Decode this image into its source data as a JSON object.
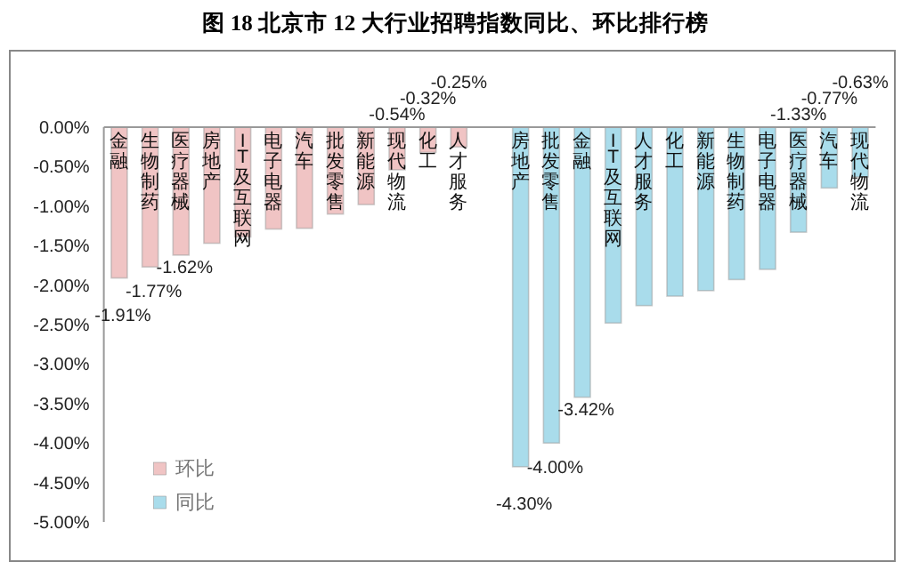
{
  "chart_data": {
    "type": "bar",
    "title": "图 18  北京市 12 大行业招聘指数同比、环比排行榜",
    "categories": [
      "金融",
      "生物制药",
      "医疗器械",
      "房地产",
      "IT及互联网",
      "电子电器",
      "汽车",
      "批发零售",
      "新能源",
      "现代物流",
      "化工",
      "人才服务",
      null,
      "房地产",
      "批发零售",
      "金融",
      "IT及互联网",
      "人才服务",
      "化工",
      "新能源",
      "生物制药",
      "电子电器",
      "医疗器械",
      "汽车",
      "现代物流"
    ],
    "series": [
      {
        "name": "环比",
        "color": "#f0c4c4",
        "values": [
          -1.91,
          -1.77,
          -1.62,
          -1.47,
          -1.39,
          -1.29,
          -1.28,
          -1.1,
          -0.98,
          -0.54,
          -0.32,
          -0.25,
          null,
          null,
          null,
          null,
          null,
          null,
          null,
          null,
          null,
          null,
          null,
          null,
          null
        ],
        "value_labels": [
          "-1.91%",
          "-1.77%",
          "-1.62%",
          null,
          null,
          null,
          null,
          null,
          null,
          "-0.54%",
          "-0.32%",
          "-0.25%",
          null,
          null,
          null,
          null,
          null,
          null,
          null,
          null,
          null,
          null,
          null,
          null,
          null
        ]
      },
      {
        "name": "同比",
        "color": "#a9dceb",
        "values": [
          null,
          null,
          null,
          null,
          null,
          null,
          null,
          null,
          null,
          null,
          null,
          null,
          null,
          -4.3,
          -4.0,
          -3.42,
          -2.48,
          -2.26,
          -2.14,
          -2.07,
          -1.93,
          -1.8,
          -1.33,
          -0.77,
          -0.63
        ],
        "value_labels": [
          null,
          null,
          null,
          null,
          null,
          null,
          null,
          null,
          null,
          null,
          null,
          null,
          null,
          "-4.30%",
          "-4.00%",
          "-3.42%",
          null,
          null,
          null,
          null,
          null,
          null,
          "-1.33%",
          "-0.77%",
          "-0.63%"
        ]
      }
    ],
    "ylim": [
      -5,
      0
    ],
    "yticks": [
      {
        "value": 0,
        "label": "0.00%"
      },
      {
        "value": -0.5,
        "label": "-0.50%"
      },
      {
        "value": -1,
        "label": "-1.00%"
      },
      {
        "value": -1.5,
        "label": "-1.50%"
      },
      {
        "value": -2,
        "label": "-2.00%"
      },
      {
        "value": -2.5,
        "label": "-2.50%"
      },
      {
        "value": -3,
        "label": "-3.00%"
      },
      {
        "value": -3.5,
        "label": "-3.50%"
      },
      {
        "value": -4,
        "label": "-4.00%"
      },
      {
        "value": -4.5,
        "label": "-4.50%"
      },
      {
        "value": -5,
        "label": "-5.00%"
      }
    ],
    "legend": "bottom left",
    "grid": false
  }
}
